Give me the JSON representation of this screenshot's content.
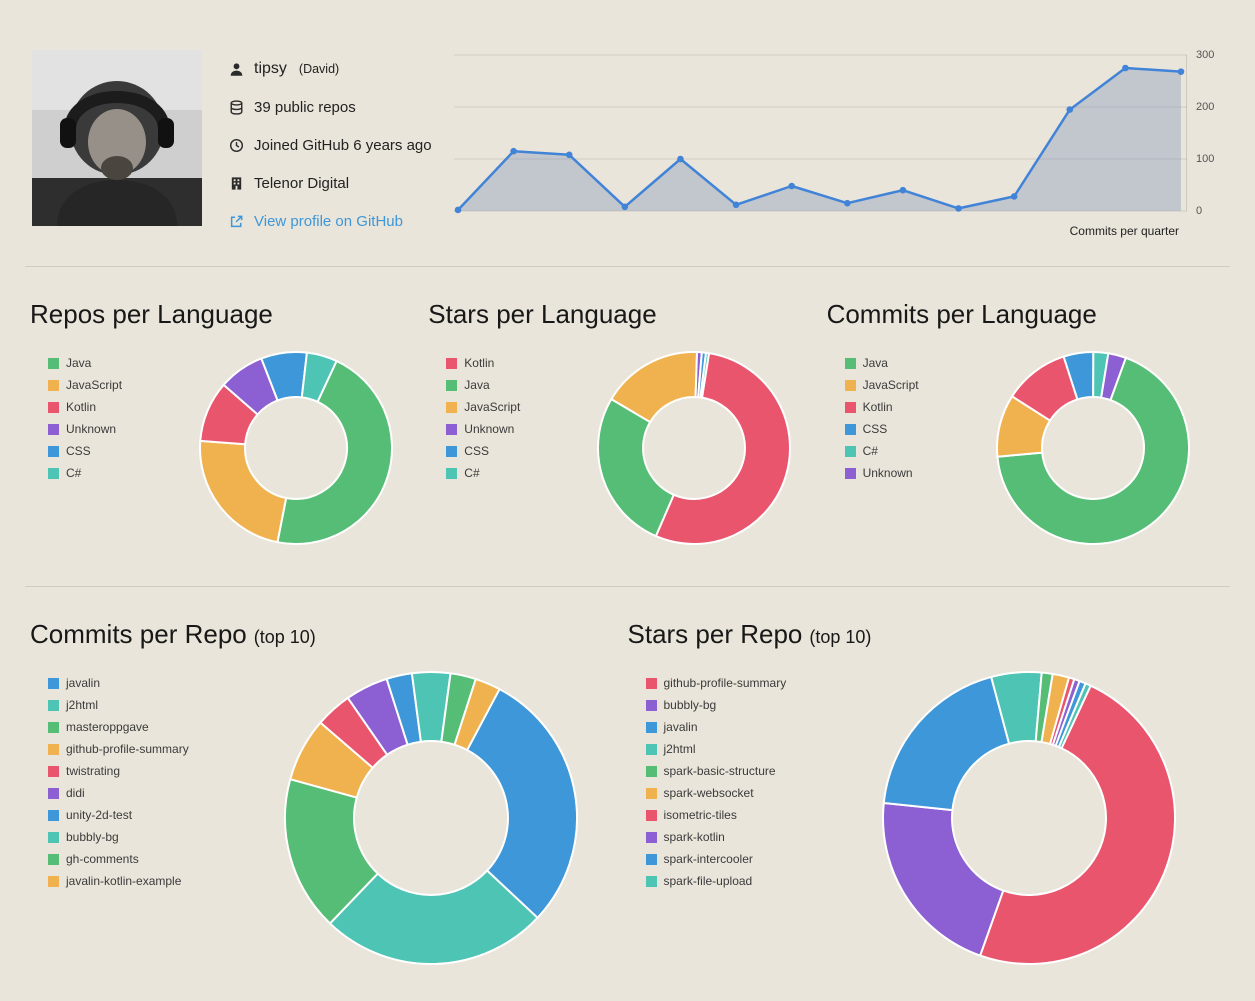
{
  "palette": {
    "green": "#55bd75",
    "orange": "#f0b24e",
    "red": "#e9556d",
    "purple": "#8c5fd3",
    "blue": "#3e97d8",
    "teal": "#4ec4b4"
  },
  "profile": {
    "username": "tipsy",
    "realname": "(David)",
    "public_repos": "39 public repos",
    "joined": "Joined GitHub 6 years ago",
    "company": "Telenor Digital",
    "profile_link": "View profile on GitHub"
  },
  "chart_data": [
    {
      "type": "area",
      "title": "Commits per quarter",
      "values": [
        2,
        115,
        108,
        8,
        100,
        12,
        48,
        15,
        40,
        5,
        28,
        195,
        275,
        268
      ],
      "ylim": [
        0,
        300
      ],
      "yticks": [
        0,
        100,
        200,
        300
      ],
      "grid": true,
      "legend_position": "none",
      "line_color": "#4184d7",
      "fill_color": "rgba(104,130,178,0.30)"
    },
    {
      "type": "pie",
      "subtype": "donut",
      "title": "Repos per Language",
      "categories": [
        "Java",
        "JavaScript",
        "Kotlin",
        "Unknown",
        "CSS",
        "C#"
      ],
      "values": [
        18,
        9,
        4,
        3,
        3,
        2
      ],
      "colors": [
        "green",
        "orange",
        "red",
        "purple",
        "blue",
        "teal"
      ],
      "start_angle": 25
    },
    {
      "type": "pie",
      "subtype": "donut",
      "title": "Stars per Language",
      "categories": [
        "Kotlin",
        "Java",
        "JavaScript",
        "Unknown",
        "CSS",
        "C#"
      ],
      "values": [
        54,
        27,
        17,
        0.8,
        0.7,
        0.5
      ],
      "colors": [
        "red",
        "green",
        "orange",
        "purple",
        "blue",
        "teal"
      ],
      "start_angle": 9
    },
    {
      "type": "pie",
      "subtype": "donut",
      "title": "Commits per Language",
      "categories": [
        "Java",
        "JavaScript",
        "Kotlin",
        "CSS",
        "C#",
        "Unknown"
      ],
      "values": [
        68,
        10.5,
        11,
        5,
        2.5,
        3
      ],
      "colors": [
        "green",
        "orange",
        "red",
        "blue",
        "teal",
        "purple"
      ],
      "start_angle": 20
    },
    {
      "type": "pie",
      "subtype": "donut",
      "title": "Commits per Repo",
      "suffix": "(top 10)",
      "categories": [
        "javalin",
        "j2html",
        "masteroppgave",
        "github-profile-summary",
        "twistrating",
        "didi",
        "unity-2d-test",
        "bubbly-bg",
        "gh-comments",
        "javalin-kotlin-example"
      ],
      "values": [
        29,
        25,
        17,
        7,
        4,
        4.7,
        2.8,
        4.2,
        2.8,
        2.8
      ],
      "colors": [
        "blue",
        "teal",
        "green",
        "orange",
        "red",
        "purple",
        "blue",
        "teal",
        "green",
        "orange"
      ],
      "start_angle": 28
    },
    {
      "type": "pie",
      "subtype": "donut",
      "title": "Stars per Repo",
      "suffix": "(top 10)",
      "categories": [
        "github-profile-summary",
        "bubbly-bg",
        "javalin",
        "j2html",
        "spark-basic-structure",
        "spark-websocket",
        "isometric-tiles",
        "spark-kotlin",
        "spark-intercooler",
        "spark-file-upload"
      ],
      "values": [
        48,
        21,
        19,
        5.5,
        1.2,
        1.8,
        0.6,
        0.6,
        0.7,
        0.6
      ],
      "colors": [
        "red",
        "purple",
        "blue",
        "teal",
        "green",
        "orange",
        "red",
        "purple",
        "blue",
        "teal"
      ],
      "start_angle": 25
    }
  ]
}
